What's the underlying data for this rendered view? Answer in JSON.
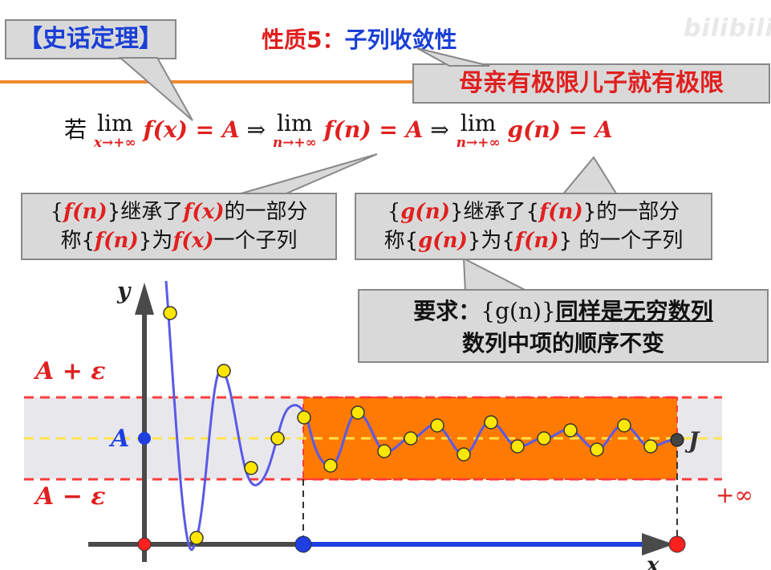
{
  "header": {
    "tag": "【史话定理】",
    "title_part1": "性质5：",
    "title_part2": "子列收敛性",
    "logo": "bilibili",
    "motto": "母亲有极限儿子就有极限"
  },
  "formula": {
    "prefix": "若",
    "lim1_sub": "x→+∞",
    "expr1": "f(x) = A",
    "arrow1": "⇒",
    "lim2_sub": "n→+∞",
    "expr2": "f(n) = A",
    "arrow2": "⇒",
    "lim3_sub": "n→+∞",
    "expr3": "g(n) = A",
    "lim_word": "lim"
  },
  "callouts": {
    "box1_line1_a": "{",
    "box1_line1_b": "f(n)",
    "box1_line1_c": "}继承了",
    "box1_line1_d": "f(x)",
    "box1_line1_e": "的一部分",
    "box1_line2_a": "称{",
    "box1_line2_b": "f(n)",
    "box1_line2_c": "}为",
    "box1_line2_d": "f(x)",
    "box1_line2_e": "一个子列",
    "box2_line1_a": "{",
    "box2_line1_b": "g(n)",
    "box2_line1_c": "}继承了{",
    "box2_line1_d": "f(n)",
    "box2_line1_e": "}的一部分",
    "box2_line2_a": "称{",
    "box2_line2_b": "g(n)",
    "box2_line2_c": "}为{",
    "box2_line2_d": "f(n)",
    "box2_line2_e": "}  的一个子列",
    "box3_line1_a": "要求：",
    "box3_line1_b": "{g(n)}",
    "box3_line1_c": "同样是无穷数列",
    "box3_line2": "数列中项的顺序不变"
  },
  "graph": {
    "y_axis_label": "y",
    "x_axis_label": "x",
    "upper_label": "A + ε",
    "lower_label": "A − ε",
    "center_label": "A",
    "end_label": "J",
    "infinity_label": "+∞",
    "colors": {
      "curve": "#5a5ae6",
      "band": "#e8e8ec",
      "highlight": "#ff7a00",
      "dashed_red": "#ff3b3b",
      "dashed_yellow": "#ffe24a",
      "point_yellow": "#ffe600",
      "axis_blue": "#1f3fe0"
    }
  }
}
